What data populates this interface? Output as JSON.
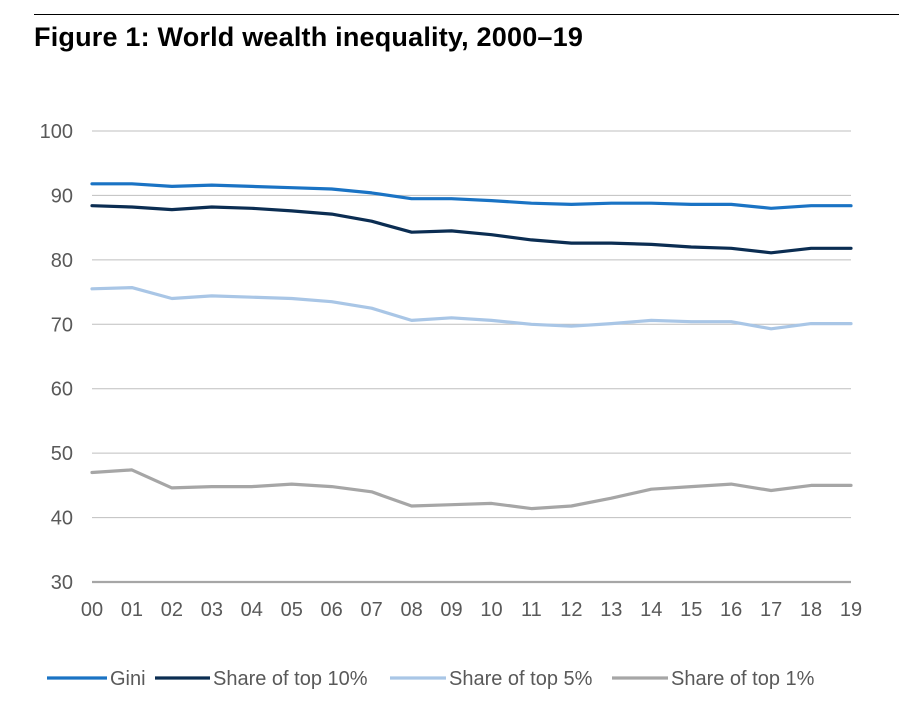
{
  "title": "Figure 1: World wealth inequality, 2000–19",
  "chart_data": {
    "type": "line",
    "title": "Figure 1: World wealth inequality, 2000–19",
    "xlabel": "",
    "ylabel": "",
    "ylim": [
      30,
      100
    ],
    "yticks": [
      "100",
      "90",
      "80",
      "70",
      "60",
      "50",
      "40",
      "30"
    ],
    "ytick_values": [
      100,
      90,
      80,
      70,
      60,
      50,
      40,
      30
    ],
    "categories": [
      "00",
      "01",
      "02",
      "03",
      "04",
      "05",
      "06",
      "07",
      "08",
      "09",
      "10",
      "11",
      "12",
      "13",
      "14",
      "15",
      "16",
      "17",
      "18",
      "19"
    ],
    "grid": true,
    "legend_position": "bottom",
    "series": [
      {
        "name": "Gini",
        "color": "#1a73c4",
        "values": [
          91.8,
          91.8,
          91.4,
          91.6,
          91.4,
          91.2,
          91.0,
          90.4,
          89.5,
          89.5,
          89.2,
          88.8,
          88.6,
          88.8,
          88.8,
          88.6,
          88.6,
          88.0,
          88.4,
          88.4
        ]
      },
      {
        "name": "Share of top 10%",
        "color": "#0b2d52",
        "values": [
          88.4,
          88.2,
          87.8,
          88.2,
          88.0,
          87.6,
          87.1,
          86.0,
          84.3,
          84.5,
          83.9,
          83.1,
          82.6,
          82.6,
          82.4,
          82.0,
          81.8,
          81.1,
          81.8,
          81.8
        ]
      },
      {
        "name": "Share of top 5%",
        "color": "#a9c6e6",
        "values": [
          75.5,
          75.7,
          74.0,
          74.4,
          74.2,
          74.0,
          73.5,
          72.5,
          70.6,
          71.0,
          70.6,
          70.0,
          69.7,
          70.1,
          70.6,
          70.4,
          70.4,
          69.3,
          70.1,
          70.1
        ]
      },
      {
        "name": "Share of top 1%",
        "color": "#a6a6a6",
        "values": [
          47.0,
          47.4,
          44.6,
          44.8,
          44.8,
          45.2,
          44.8,
          44.0,
          41.8,
          42.0,
          42.2,
          41.4,
          41.8,
          43.0,
          44.4,
          44.8,
          45.2,
          44.2,
          45.0,
          45.0
        ]
      }
    ]
  }
}
